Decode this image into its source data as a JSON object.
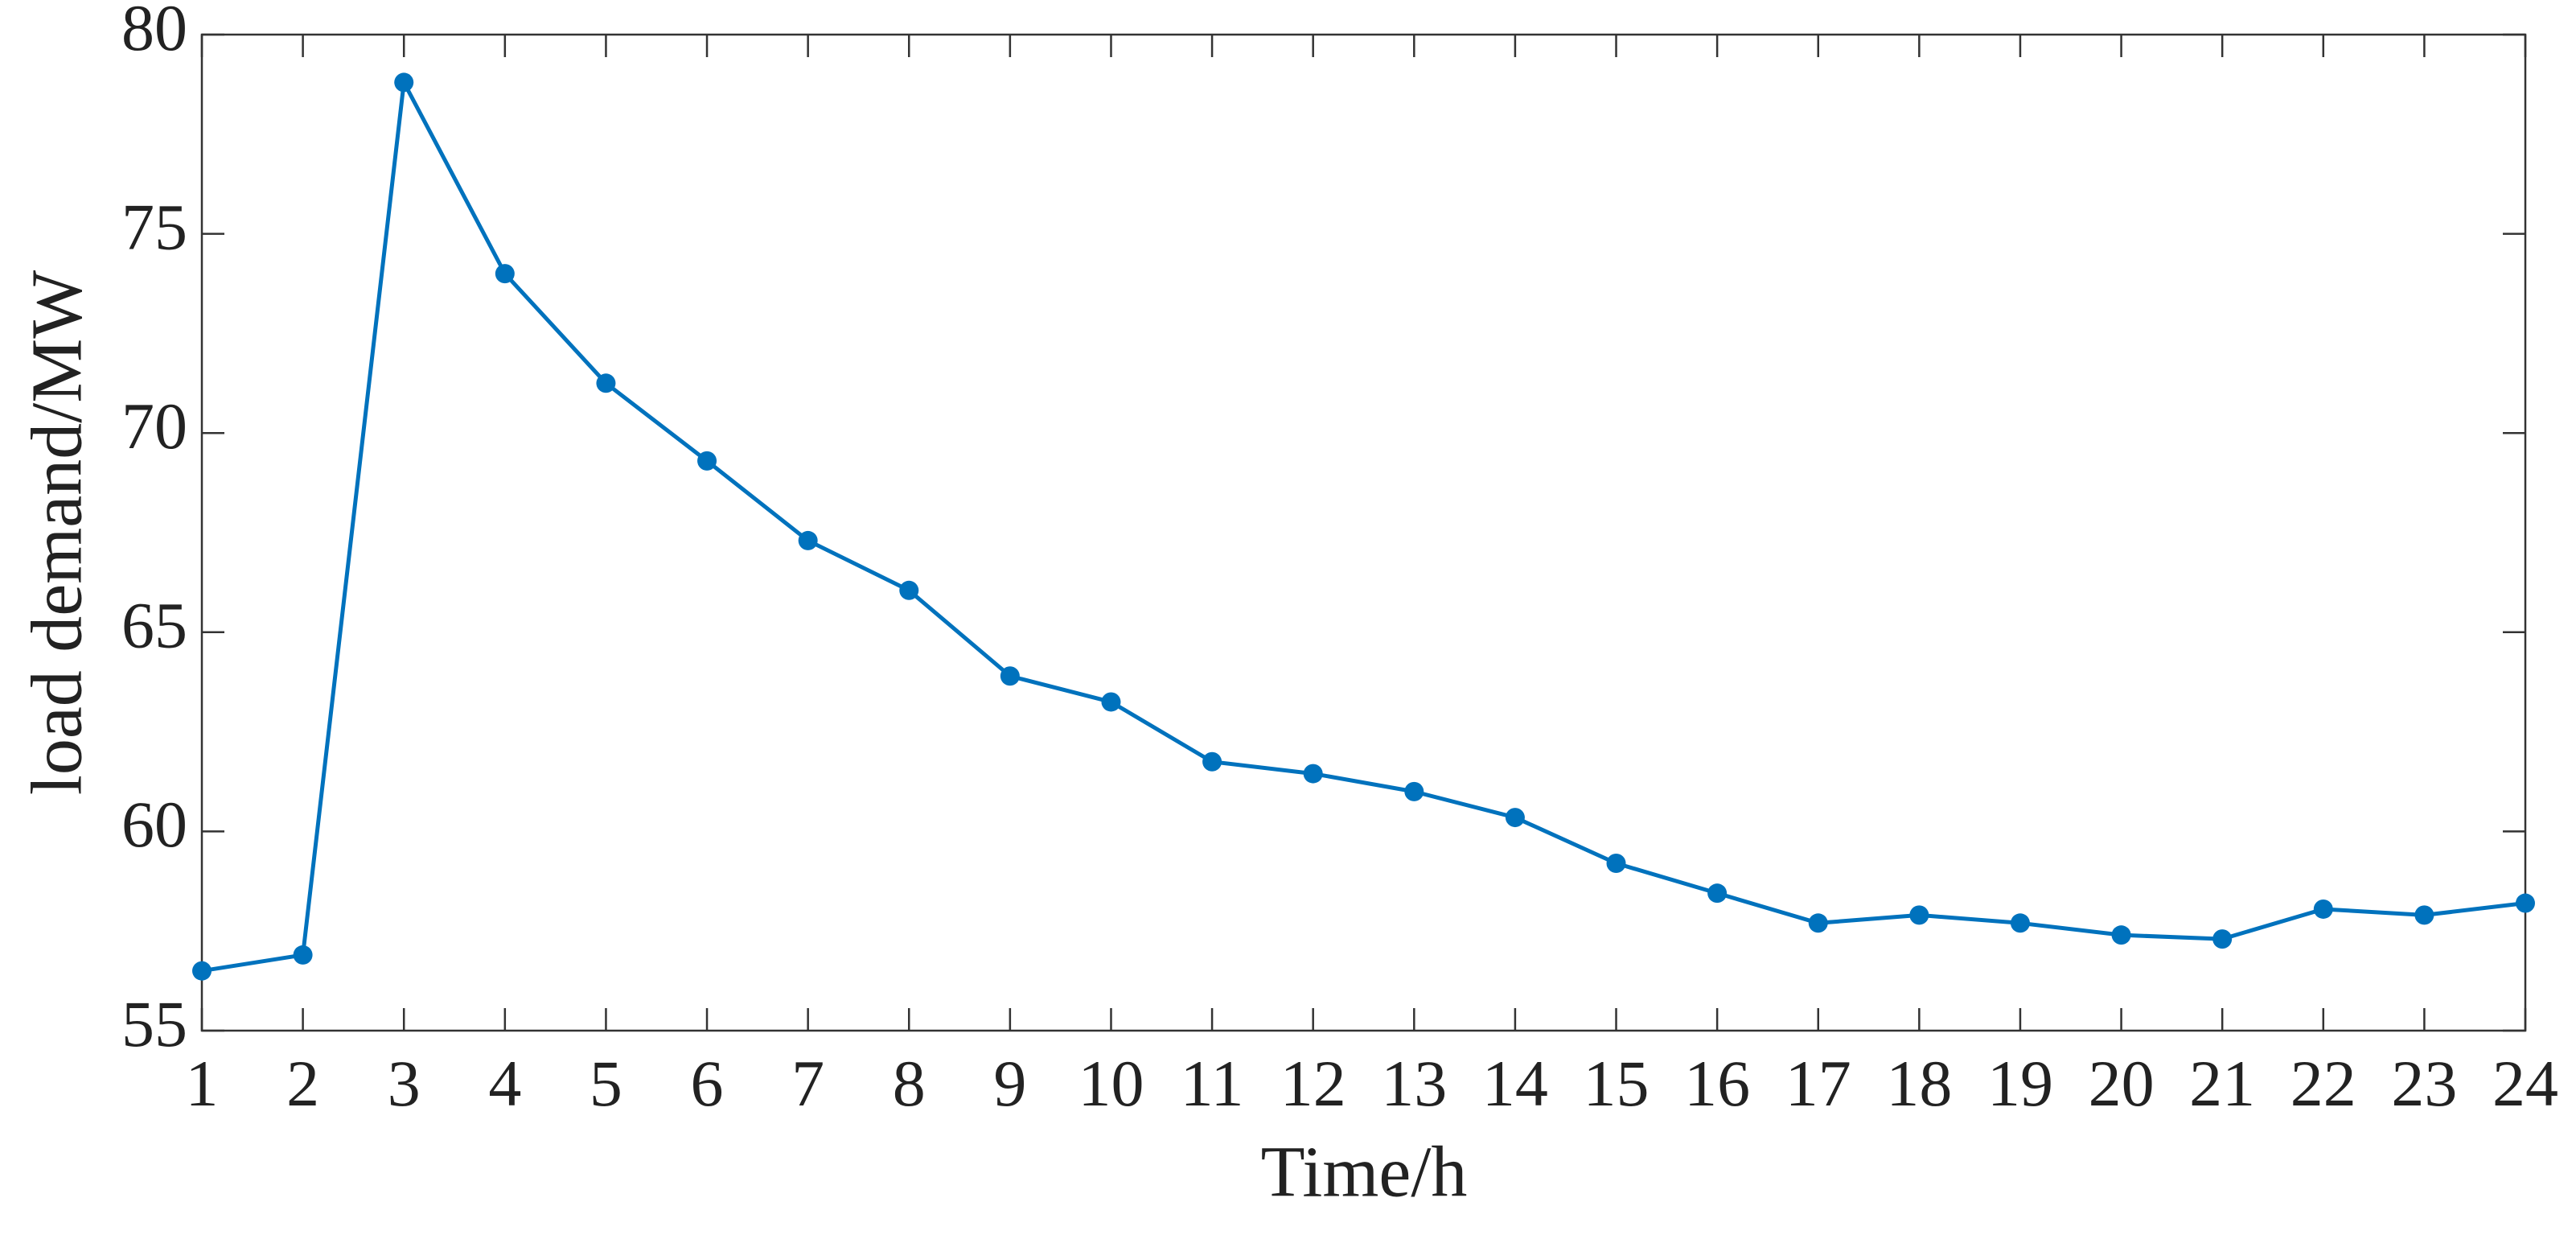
{
  "chart_data": {
    "type": "line",
    "x_label": "Time/h",
    "y_label": "load demand/MW",
    "x": [
      1,
      2,
      3,
      4,
      5,
      6,
      7,
      8,
      9,
      10,
      11,
      12,
      13,
      14,
      15,
      16,
      17,
      18,
      19,
      20,
      21,
      22,
      23,
      24
    ],
    "values": [
      56.5,
      56.9,
      78.8,
      74.0,
      71.25,
      69.3,
      67.3,
      66.05,
      63.9,
      63.25,
      61.75,
      61.45,
      61.0,
      60.35,
      59.2,
      58.45,
      57.7,
      57.9,
      57.7,
      57.4,
      57.3,
      58.05,
      57.9,
      58.2
    ],
    "color": "#0072bd",
    "xlim": [
      1,
      24
    ],
    "xticks": [
      1,
      2,
      3,
      4,
      5,
      6,
      7,
      8,
      9,
      10,
      11,
      12,
      13,
      14,
      15,
      16,
      17,
      18,
      19,
      20,
      21,
      22,
      23,
      24
    ],
    "ylim": [
      55,
      80
    ],
    "yticks": [
      55,
      60,
      65,
      70,
      75,
      80
    ],
    "grid": false
  }
}
